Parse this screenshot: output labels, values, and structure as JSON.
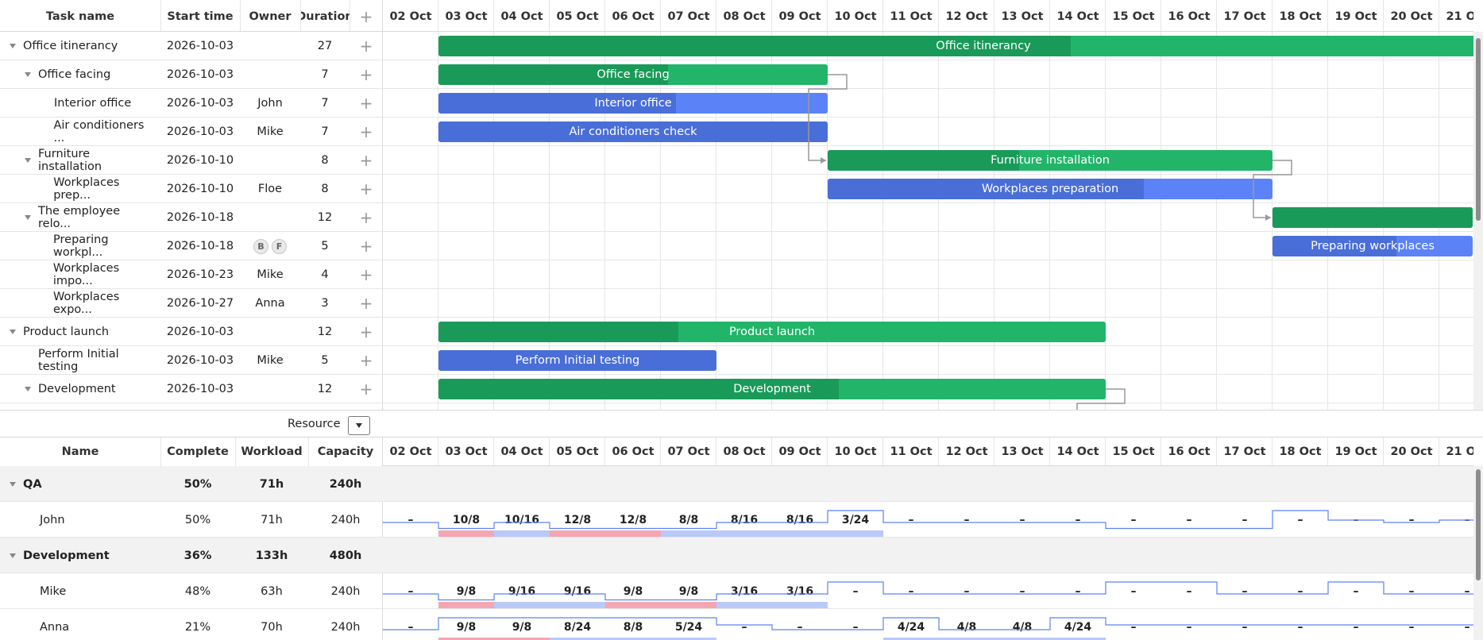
{
  "gantt": {
    "columns": {
      "task_name": "Task name",
      "start_time": "Start time",
      "owner": "Owner",
      "duration": "Duration",
      "add": "+"
    },
    "scale": [
      "02 Oct",
      "03 Oct",
      "04 Oct",
      "05 Oct",
      "06 Oct",
      "07 Oct",
      "08 Oct",
      "09 Oct",
      "10 Oct",
      "11 Oct",
      "12 Oct",
      "13 Oct",
      "14 Oct",
      "15 Oct",
      "16 Oct",
      "17 Oct",
      "18 Oct",
      "19 Oct",
      "20 Oct",
      "21 Oct"
    ],
    "rows": [
      {
        "name": "Office itinerancy",
        "start": "2026-10-03",
        "owner": "",
        "duration": "27",
        "level": 0,
        "parent": true,
        "type": "project",
        "bar_start": 1,
        "bar_len": 19.6,
        "progress": 0.58,
        "label": "Office itinerancy"
      },
      {
        "name": "Office facing",
        "start": "2026-10-03",
        "owner": "",
        "duration": "7",
        "level": 1,
        "parent": true,
        "type": "project",
        "bar_start": 1,
        "bar_len": 7,
        "progress": 0.59,
        "label": "Office facing"
      },
      {
        "name": "Interior office",
        "start": "2026-10-03",
        "owner": "John",
        "duration": "7",
        "level": 2,
        "parent": false,
        "type": "task",
        "bar_start": 1,
        "bar_len": 7,
        "progress": 0.61,
        "label": "Interior office"
      },
      {
        "name": "Air conditioners ...",
        "start": "2026-10-03",
        "owner": "Mike",
        "duration": "7",
        "level": 2,
        "parent": false,
        "type": "task",
        "bar_start": 1,
        "bar_len": 7,
        "progress": 1,
        "label": "Air conditioners check"
      },
      {
        "name": "Furniture installation",
        "start": "2026-10-10",
        "owner": "",
        "duration": "8",
        "level": 1,
        "parent": true,
        "type": "project",
        "bar_start": 8,
        "bar_len": 8,
        "progress": 0.43,
        "label": "Furniture installation"
      },
      {
        "name": "Workplaces prep...",
        "start": "2026-10-10",
        "owner": "Floe",
        "duration": "8",
        "level": 2,
        "parent": false,
        "type": "task",
        "bar_start": 8,
        "bar_len": 8,
        "progress": 0.71,
        "label": "Workplaces preparation"
      },
      {
        "name": "The employee relo...",
        "start": "2026-10-18",
        "owner": "",
        "duration": "12",
        "level": 1,
        "parent": true,
        "type": "project",
        "bar_start": 16,
        "bar_len": 3.6,
        "progress": 1,
        "label": ""
      },
      {
        "name": "Preparing workpl...",
        "start": "2026-10-18",
        "owner": "",
        "avatars": [
          "B",
          "F"
        ],
        "duration": "5",
        "level": 2,
        "parent": false,
        "type": "task",
        "bar_start": 16,
        "bar_len": 3.6,
        "progress": 0.62,
        "label": "Preparing workplaces"
      },
      {
        "name": "Workplaces impo...",
        "start": "2026-10-23",
        "owner": "Mike",
        "duration": "4",
        "level": 2,
        "parent": false,
        "type": "none"
      },
      {
        "name": "Workplaces expo...",
        "start": "2026-10-27",
        "owner": "Anna",
        "duration": "3",
        "level": 2,
        "parent": false,
        "type": "none"
      },
      {
        "name": "Product launch",
        "start": "2026-10-03",
        "owner": "",
        "duration": "12",
        "level": 0,
        "parent": true,
        "type": "project",
        "bar_start": 1,
        "bar_len": 12,
        "progress": 0.36,
        "label": "Product launch"
      },
      {
        "name": "Perform Initial testing",
        "start": "2026-10-03",
        "owner": "Mike",
        "duration": "5",
        "level": 1,
        "parent": false,
        "type": "task",
        "bar_start": 1,
        "bar_len": 5,
        "progress": 1,
        "label": "Perform Initial testing"
      },
      {
        "name": "Development",
        "start": "2026-10-03",
        "owner": "",
        "duration": "12",
        "level": 1,
        "parent": true,
        "type": "project",
        "bar_start": 1,
        "bar_len": 12,
        "progress": 0.6,
        "label": "Development"
      }
    ]
  },
  "resource_toolbar": {
    "label": "Resource"
  },
  "resources": {
    "columns": {
      "name": "Name",
      "complete": "Complete",
      "workload": "Workload",
      "capacity": "Capacity"
    },
    "rows": [
      {
        "name": "QA",
        "complete": "50%",
        "workload": "71h",
        "capacity": "240h",
        "group": true
      },
      {
        "name": "John",
        "complete": "50%",
        "workload": "71h",
        "capacity": "240h",
        "group": false,
        "cells": [
          "–",
          "10/8",
          "10/16",
          "12/8",
          "12/8",
          "8/8",
          "8/16",
          "8/16",
          "3/24",
          "–",
          "–",
          "–",
          "–",
          "–",
          "–",
          "–",
          "–",
          "–",
          "–",
          "–"
        ],
        "bands": [
          "",
          "over",
          "ok",
          "over",
          "over",
          "ok",
          "ok",
          "ok",
          "ok",
          "",
          "",
          "",
          "",
          "",
          "",
          "",
          "",
          "",
          "",
          ""
        ],
        "levels": [
          0.5,
          0.25,
          0.5,
          0.25,
          0.25,
          0.25,
          0.5,
          0.5,
          1,
          0.5,
          0.5,
          0.5,
          0.5,
          0.25,
          0.25,
          0.25,
          1,
          0.6,
          0.5,
          0.6
        ]
      },
      {
        "name": "Development",
        "complete": "36%",
        "workload": "133h",
        "capacity": "480h",
        "group": true
      },
      {
        "name": "Mike",
        "complete": "48%",
        "workload": "63h",
        "capacity": "240h",
        "group": false,
        "cells": [
          "–",
          "9/8",
          "9/16",
          "9/16",
          "9/8",
          "9/8",
          "3/16",
          "3/16",
          "–",
          "–",
          "–",
          "–",
          "–",
          "–",
          "–",
          "–",
          "–",
          "–",
          "–",
          "–"
        ],
        "bands": [
          "",
          "over",
          "ok",
          "ok",
          "over",
          "over",
          "ok",
          "ok",
          "",
          "",
          "",
          "",
          "",
          "",
          "",
          "",
          "",
          "",
          "",
          ""
        ],
        "levels": [
          0.5,
          0.25,
          0.5,
          0.5,
          0.25,
          0.25,
          0.5,
          0.5,
          1,
          0.5,
          0.5,
          0.5,
          0.5,
          1,
          1,
          0.5,
          0.5,
          1,
          0.5,
          0.5
        ]
      },
      {
        "name": "Anna",
        "complete": "21%",
        "workload": "70h",
        "capacity": "240h",
        "group": false,
        "cells": [
          "–",
          "9/8",
          "9/8",
          "8/24",
          "8/8",
          "5/24",
          "–",
          "–",
          "–",
          "4/24",
          "4/8",
          "4/8",
          "4/24",
          "–",
          "–",
          "–",
          "–",
          "–",
          "–",
          "–"
        ],
        "bands": [
          "",
          "over",
          "over",
          "ok",
          "ok",
          "ok",
          "",
          "",
          "",
          "ok",
          "ok",
          "ok",
          "ok",
          "",
          "",
          "",
          "",
          "",
          "",
          ""
        ],
        "levels": [
          0.5,
          1,
          1,
          1,
          1,
          1,
          0.7,
          0.5,
          0.5,
          1,
          0.5,
          0.5,
          1,
          0.7,
          0.7,
          0.7,
          0.7,
          0.7,
          0.7,
          0.7
        ]
      }
    ]
  },
  "colors": {
    "project_bar": "#22b56a",
    "project_progress": "#1a9a59",
    "task_bar": "#5b82f6",
    "task_progress": "#4a6ed8",
    "overload": "#f4a6b3",
    "load": "#b9c9f8",
    "load_line": "#5b82f6"
  }
}
